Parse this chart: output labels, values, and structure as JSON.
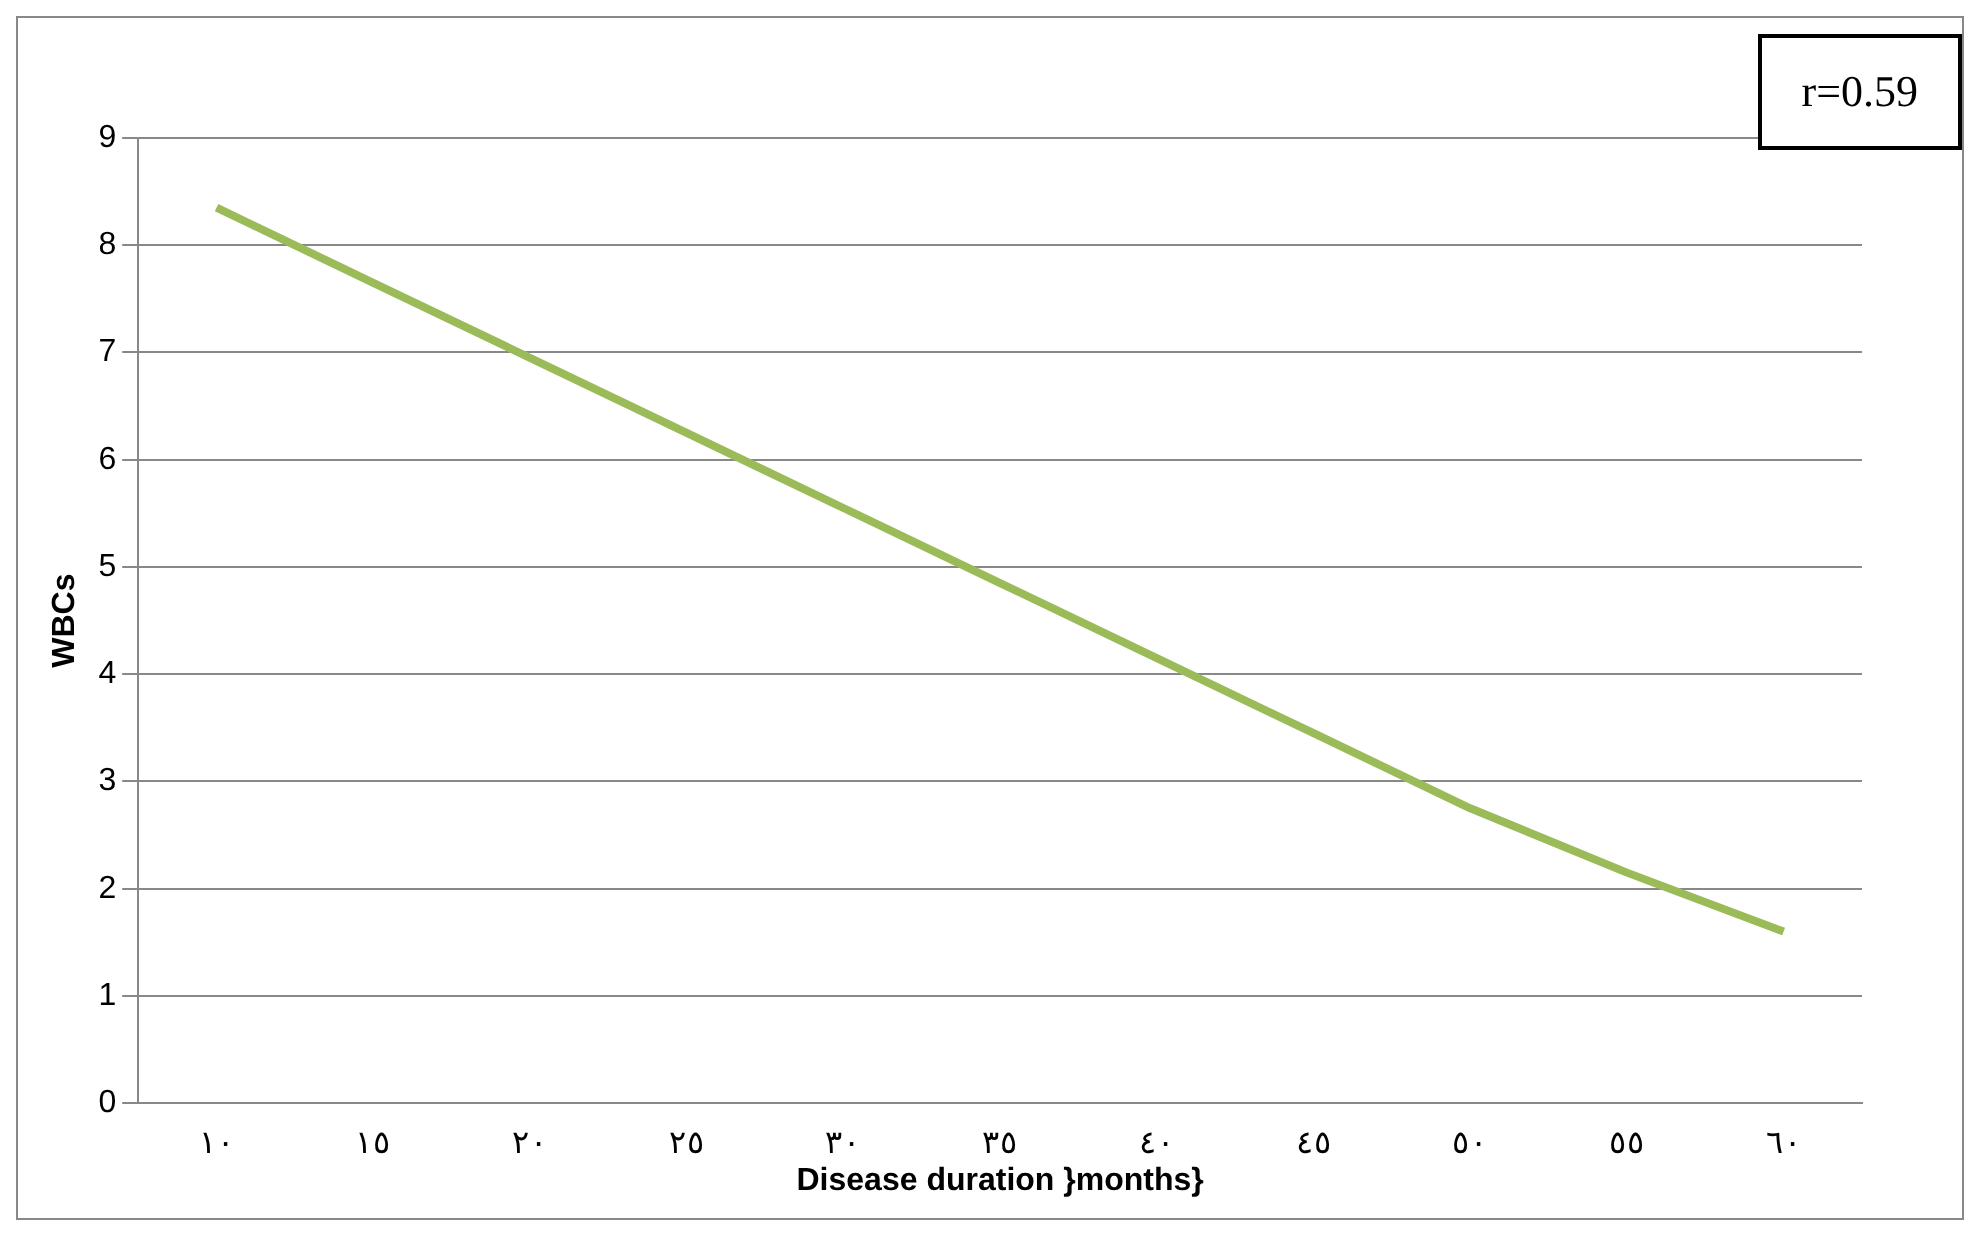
{
  "chart_data": {
    "type": "line",
    "xlabel": "Disease duration }months}",
    "ylabel": "WBCs",
    "categories": [
      "١٠",
      "١٥",
      "٢٠",
      "٢٥",
      "٣٠",
      "٣٥",
      "٤٠",
      "٤٥",
      "٥٠",
      "٥٥",
      "٦٠"
    ],
    "series": [
      {
        "color": "#9bbb59",
        "values": [
          8.35,
          7.65,
          6.95,
          6.25,
          5.55,
          4.85,
          4.15,
          3.45,
          2.75,
          2.15,
          1.6
        ]
      }
    ],
    "ylim": [
      0,
      9
    ],
    "yticks": [
      0,
      1,
      2,
      3,
      4,
      5,
      6,
      7,
      8,
      9
    ],
    "grid": "y",
    "legend": false,
    "marker": "none",
    "line_style": "solid",
    "annotations": [
      "r=0.59"
    ]
  }
}
